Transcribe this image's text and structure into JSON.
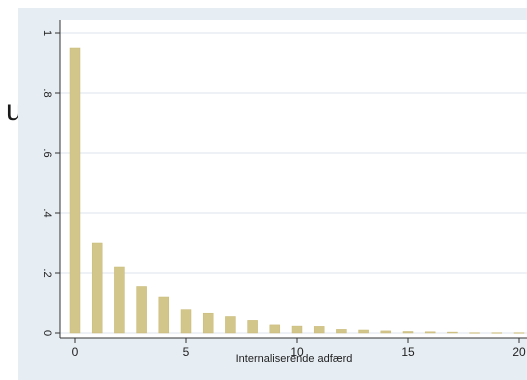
{
  "background_fragments": [
    {
      "text": "uc"
    },
    {
      "text": ","
    }
  ],
  "chart_data": {
    "type": "bar",
    "x": [
      0,
      1,
      2,
      3,
      4,
      5,
      6,
      7,
      8,
      9,
      10,
      11,
      12,
      13,
      14,
      15,
      16,
      17,
      18,
      19,
      20
    ],
    "values": [
      0.95,
      0.3,
      0.22,
      0.155,
      0.12,
      0.078,
      0.066,
      0.055,
      0.042,
      0.027,
      0.023,
      0.022,
      0.012,
      0.01,
      0.007,
      0.005,
      0.004,
      0.003,
      0.001,
      0.001,
      0.001
    ],
    "xlabel": "Internaliserende adfærd",
    "ylabel": "",
    "xlim": [
      -0.5,
      20
    ],
    "ylim": [
      0,
      1
    ],
    "xticks": [
      "0",
      "5",
      "10",
      "15",
      "20"
    ],
    "yticks": [
      "0",
      ".2",
      ".4",
      ".6",
      ".8",
      "1"
    ],
    "grid": true,
    "colors": {
      "bar": "#d3c68b",
      "bar_edge": "#c8b976",
      "plot_bg": "#ffffff",
      "outer_bg": "#e6edf3",
      "grid": "#dde5ec",
      "axis": "#333333"
    }
  }
}
